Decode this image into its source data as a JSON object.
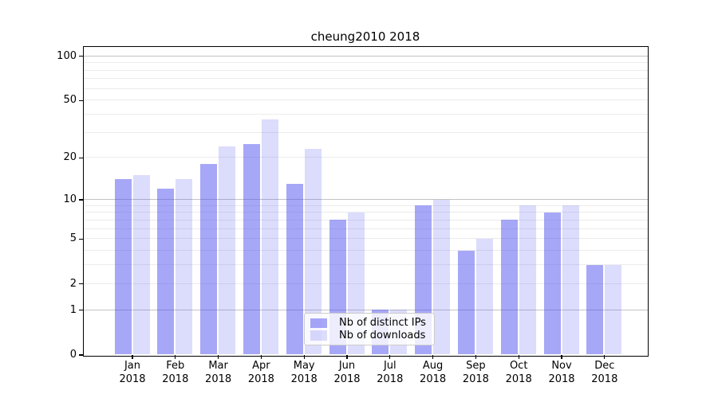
{
  "chart_data": {
    "type": "bar",
    "title": "cheung2010 2018",
    "categories": [
      "Jan 2018",
      "Feb 2018",
      "Mar 2018",
      "Apr 2018",
      "May 2018",
      "Jun 2018",
      "Jul 2018",
      "Aug 2018",
      "Sep 2018",
      "Oct 2018",
      "Nov 2018",
      "Dec 2018"
    ],
    "x_tick_labels": [
      [
        "Jan",
        "2018"
      ],
      [
        "Feb",
        "2018"
      ],
      [
        "Mar",
        "2018"
      ],
      [
        "Apr",
        "2018"
      ],
      [
        "May",
        "2018"
      ],
      [
        "Jun",
        "2018"
      ],
      [
        "Jul",
        "2018"
      ],
      [
        "Aug",
        "2018"
      ],
      [
        "Sep",
        "2018"
      ],
      [
        "Oct",
        "2018"
      ],
      [
        "Nov",
        "2018"
      ],
      [
        "Dec",
        "2018"
      ]
    ],
    "series": [
      {
        "name": "Nb of distinct IPs",
        "color": "#5050f0",
        "alpha": 0.5,
        "values": [
          14,
          12,
          18,
          25,
          13,
          7,
          1,
          9,
          4,
          7,
          8,
          3
        ]
      },
      {
        "name": "Nb of downloads",
        "color": "#5050f0",
        "alpha": 0.2,
        "values": [
          15,
          14,
          24,
          37,
          23,
          8,
          1,
          10,
          5,
          9,
          9,
          3
        ]
      }
    ],
    "xlabel": "",
    "ylabel": "",
    "y_axis": {
      "scale": "log1p",
      "ticks": [
        0,
        1,
        2,
        5,
        10,
        20,
        50,
        100
      ],
      "major_gridlines": [
        1,
        10,
        100
      ],
      "minor_gridlines": [
        2,
        3,
        4,
        5,
        6,
        7,
        8,
        9,
        20,
        30,
        40,
        50,
        60,
        70,
        80,
        90
      ],
      "ylim": [
        0,
        116
      ]
    },
    "legend": {
      "position": "lower center",
      "entries": [
        "Nb of distinct IPs",
        "Nb of downloads"
      ]
    },
    "grid": true,
    "colors": {
      "major_grid": "#c3c3c3",
      "minor_grid": "#ebebeb",
      "spine": "#000000",
      "text": "#000000",
      "background": "#ffffff"
    }
  }
}
